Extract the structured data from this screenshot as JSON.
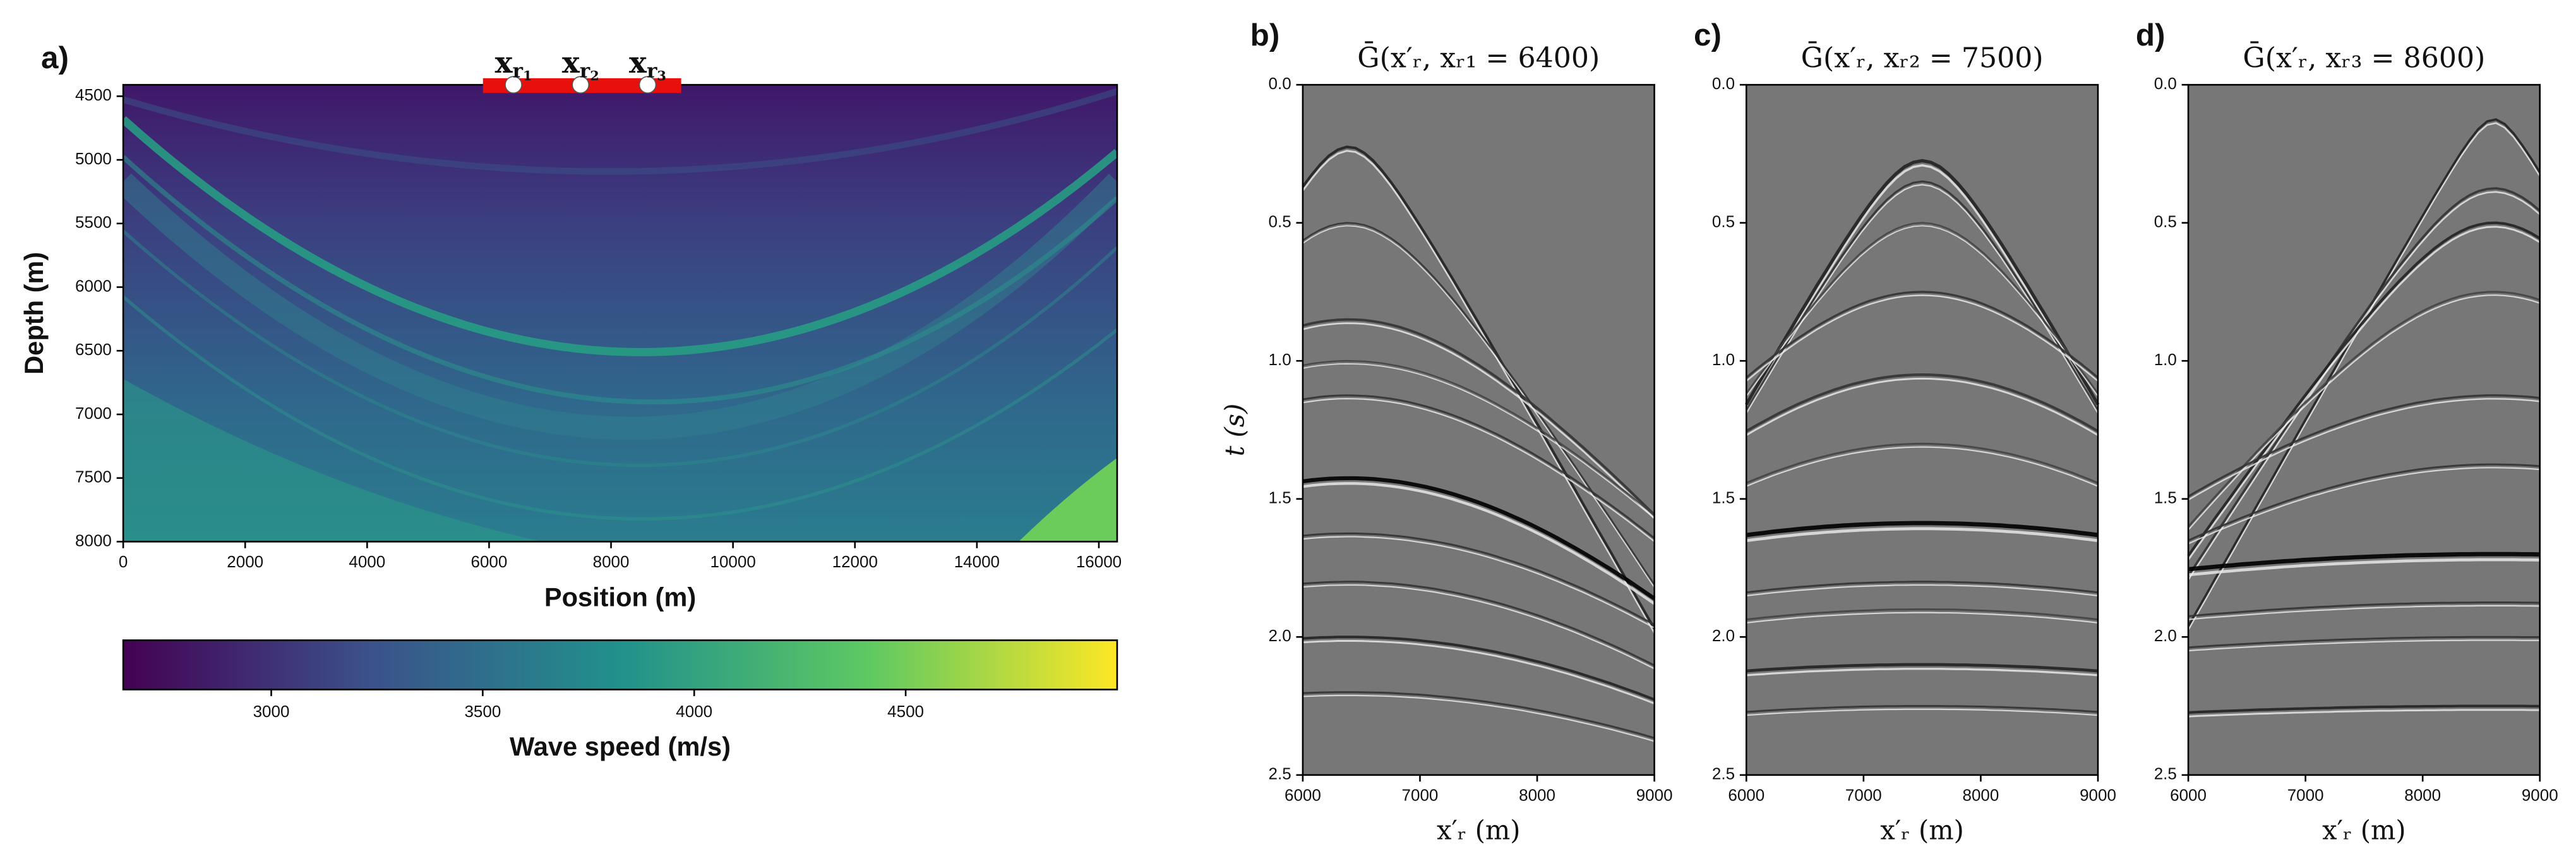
{
  "chart_data": [
    {
      "type": "heatmap",
      "label": "a)",
      "xlabel": "Position (m)",
      "ylabel": "Depth (m)",
      "xlim": [
        0,
        16300
      ],
      "xticks": [
        0,
        2000,
        4000,
        6000,
        8000,
        10000,
        12000,
        14000,
        16000
      ],
      "ylim": [
        8000,
        4410
      ],
      "yticks": [
        4500,
        5000,
        5500,
        6000,
        6500,
        7000,
        7500,
        8000
      ],
      "receivers": {
        "x": [
          6400,
          7500,
          8600
        ],
        "labels": [
          {
            "base": "x",
            "sub": "r",
            "index": "1"
          },
          {
            "base": "x",
            "sub": "r",
            "index": "2"
          },
          {
            "base": "x",
            "sub": "r",
            "index": "3"
          }
        ],
        "array_extent": [
          5900,
          9150
        ],
        "color": "#e8100c"
      },
      "colorbar": {
        "label": "Wave speed (m/s)",
        "clim": [
          2650,
          5000
        ],
        "ticks": [
          3000,
          3500,
          4000,
          4500
        ]
      }
    },
    {
      "type": "image",
      "label": "b)",
      "title": "Ḡ(x′ᵣ, xᵣ₁ = 6400)",
      "xlabel": "x′ᵣ (m)",
      "ylabel": "t (s)",
      "xlim": [
        6000,
        9000
      ],
      "xticks": [
        6000,
        7000,
        8000,
        9000
      ],
      "ylim": [
        2.5,
        0
      ],
      "yticks": [
        {
          "value": 0,
          "label": "0.0"
        },
        0.5,
        {
          "value": 1,
          "label": "1.0"
        },
        1.5,
        {
          "value": 2,
          "label": "2.0"
        },
        2.5
      ]
    },
    {
      "type": "image",
      "label": "c)",
      "title": "Ḡ(x′ᵣ, xᵣ₂ = 7500)",
      "xlabel": "x′ᵣ (m)",
      "xlim": [
        6000,
        9000
      ],
      "xticks": [
        6000,
        7000,
        8000,
        9000
      ],
      "ylim": [
        2.5,
        0
      ],
      "yticks": [
        {
          "value": 0,
          "label": "0.0"
        },
        0.5,
        {
          "value": 1,
          "label": "1.0"
        },
        1.5,
        {
          "value": 2,
          "label": "2.0"
        },
        2.5
      ]
    },
    {
      "type": "image",
      "label": "d)",
      "title": "Ḡ(x′ᵣ, xᵣ₃ = 8600)",
      "xlabel": "x′ᵣ (m)",
      "xlim": [
        6000,
        9000
      ],
      "xticks": [
        6000,
        7000,
        8000,
        9000
      ],
      "ylim": [
        2.5,
        0
      ],
      "yticks": [
        {
          "value": 0,
          "label": "0.0"
        },
        0.5,
        {
          "value": 1,
          "label": "1.0"
        },
        1.5,
        {
          "value": 2,
          "label": "2.0"
        },
        2.5
      ]
    }
  ]
}
